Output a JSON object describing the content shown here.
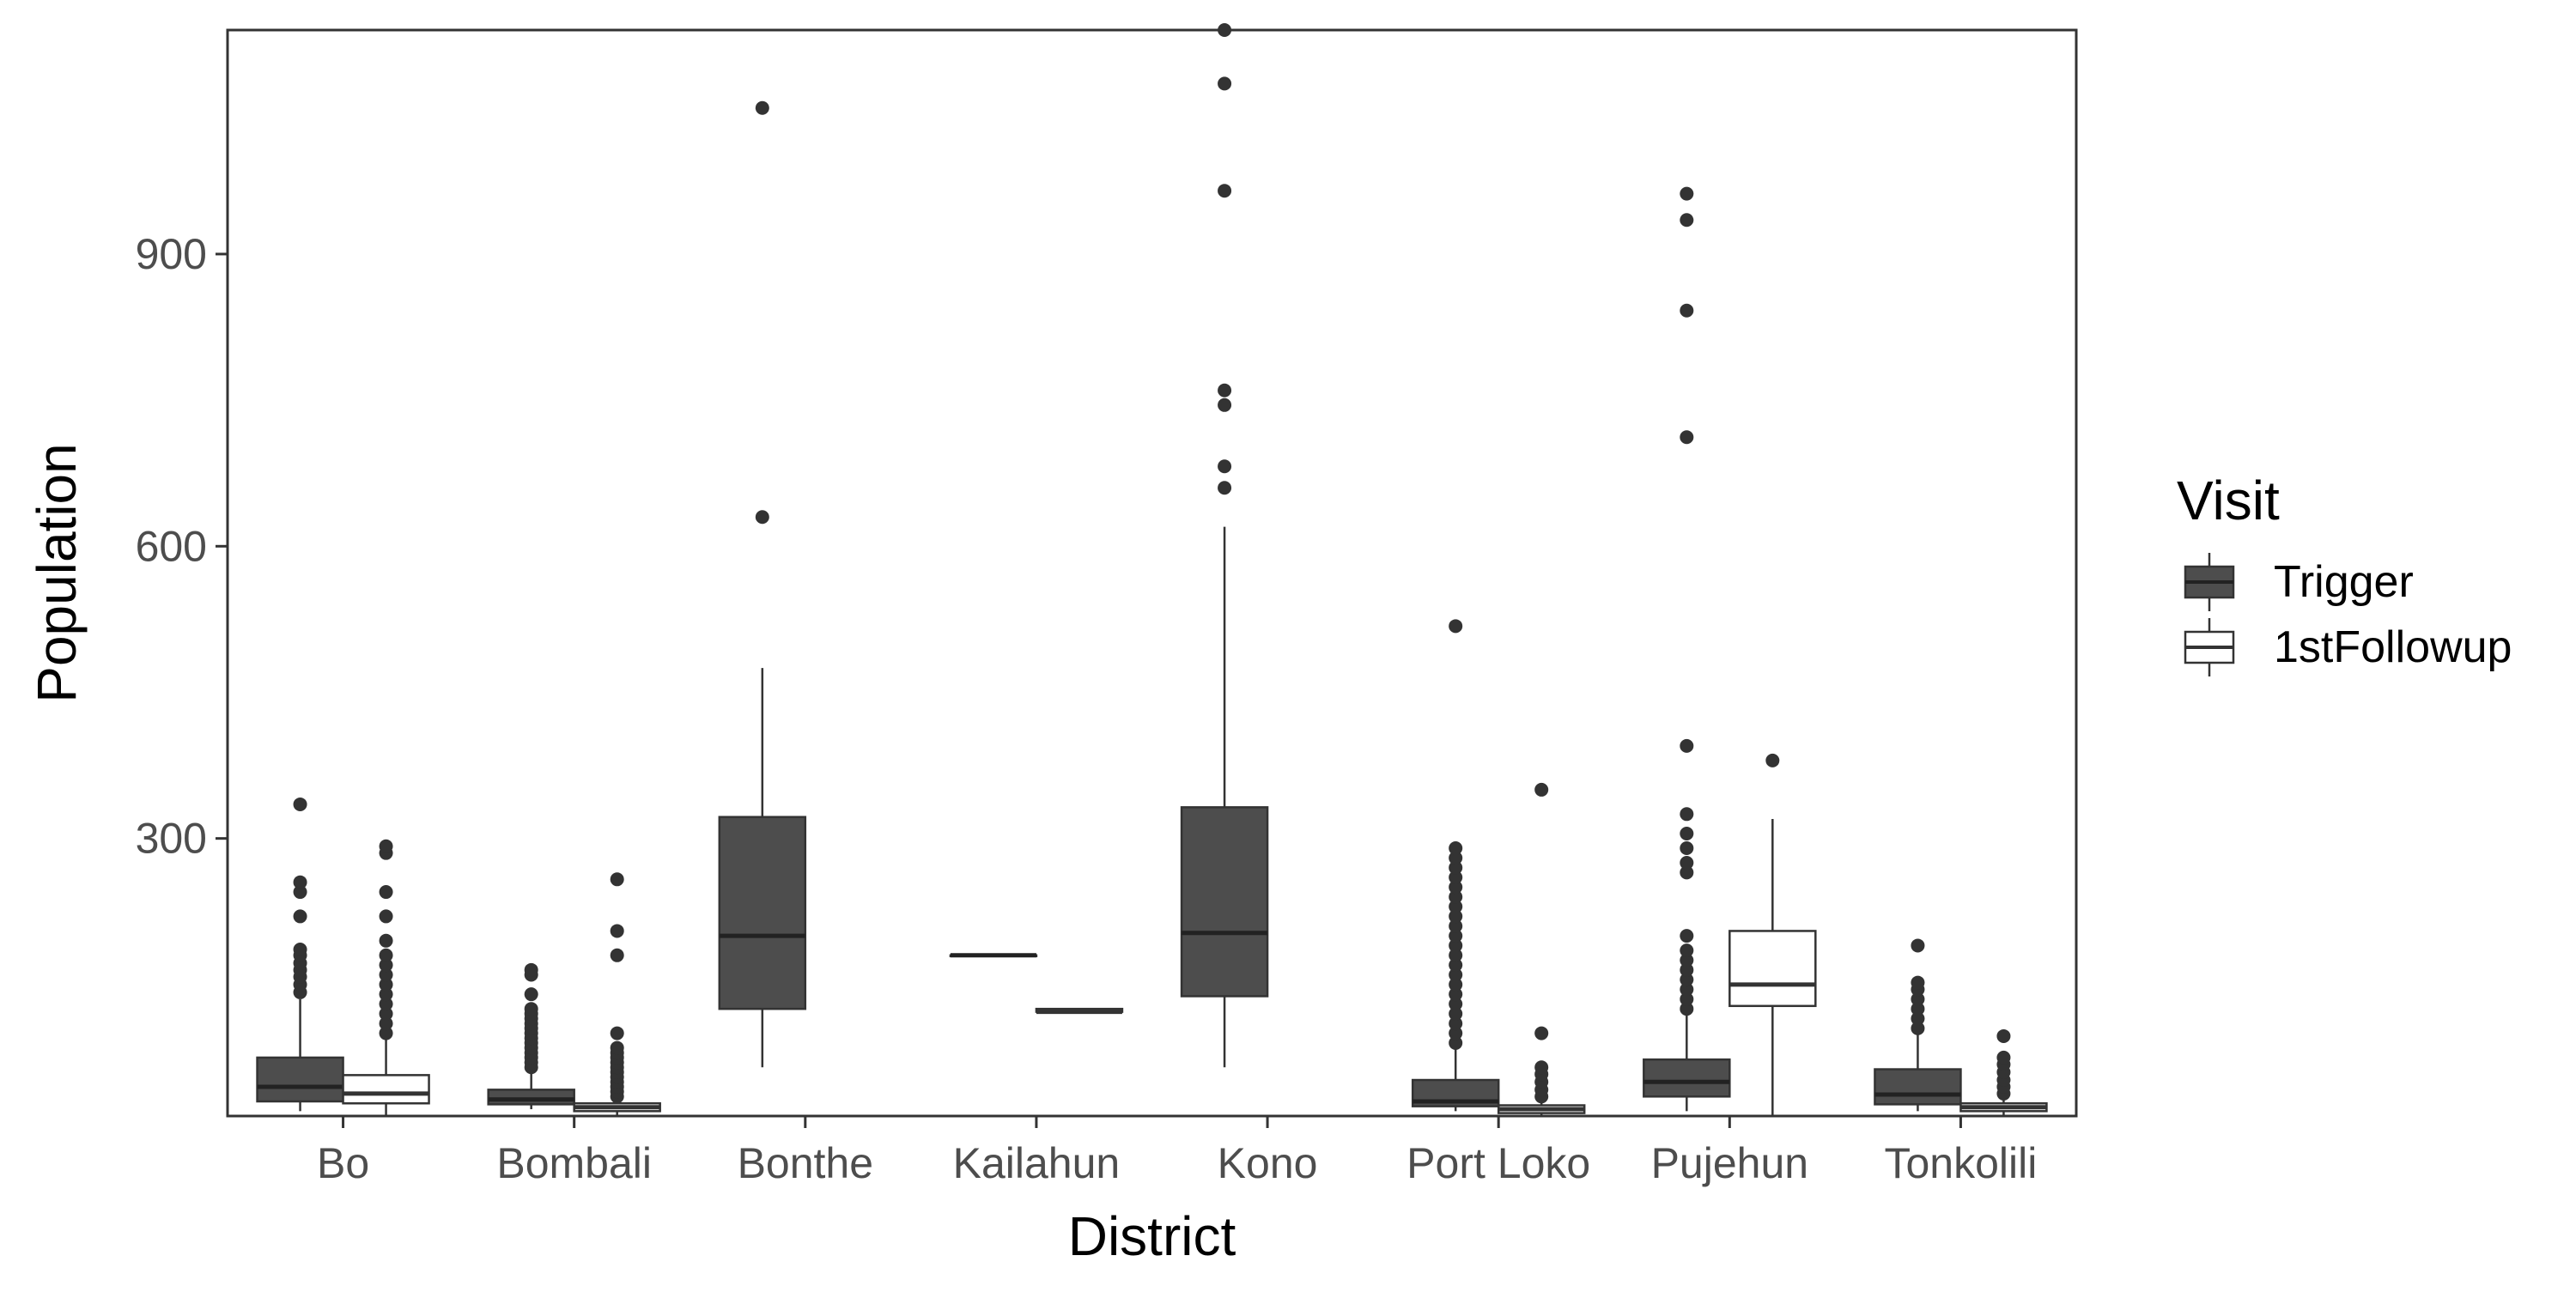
{
  "chart_data": {
    "type": "boxplot",
    "title": "",
    "xlabel": "District",
    "ylabel": "Population",
    "ylim": [
      15,
      1130
    ],
    "yticks": [
      300,
      600,
      900
    ],
    "grid": false,
    "legend": {
      "title": "Visit",
      "placement": "right"
    },
    "categories": [
      "Bo",
      "Bombali",
      "Bonthe",
      "Kailahun",
      "Kono",
      "Port Loko",
      "Pujehun",
      "Tonkolili"
    ],
    "colors": {
      "Trigger": "#4d4d4d",
      "1stFollowup": "#ffffff",
      "stroke": "#333333"
    },
    "series": [
      {
        "name": "Trigger",
        "boxes": [
          {
            "category": "Bo",
            "min": 20,
            "q1": 30,
            "median": 45,
            "q3": 75,
            "max": 135,
            "outliers": [
              142,
              150,
              158,
              165,
              172,
              180,
              186,
              220,
              245,
              255,
              335
            ]
          },
          {
            "category": "Bombali",
            "min": 22,
            "q1": 27,
            "median": 32,
            "q3": 42,
            "max": 60,
            "outliers": [
              65,
              70,
              75,
              80,
              85,
              90,
              95,
              100,
              105,
              110,
              115,
              120,
              125,
              140,
              160,
              165
            ]
          },
          {
            "category": "Bonthe",
            "min": 65,
            "q1": 125,
            "median": 200,
            "q3": 322,
            "max": 475,
            "outliers": [
              630,
              1050
            ]
          },
          {
            "category": "Kailahun",
            "min": 180,
            "q1": 180,
            "median": 180,
            "q3": 180,
            "max": 180,
            "outliers": []
          },
          {
            "category": "Kono",
            "min": 65,
            "q1": 138,
            "median": 203,
            "q3": 332,
            "max": 620,
            "outliers": [
              660,
              682,
              745,
              760,
              965,
              1075,
              1130
            ]
          },
          {
            "category": "Port Loko",
            "min": 20,
            "q1": 25,
            "median": 30,
            "q3": 52,
            "max": 85,
            "outliers": [
              90,
              100,
              110,
              120,
              130,
              140,
              150,
              160,
              170,
              180,
              190,
              200,
              210,
              220,
              230,
              240,
              250,
              260,
              270,
              280,
              290,
              518
            ]
          },
          {
            "category": "Pujehun",
            "min": 20,
            "q1": 35,
            "median": 50,
            "q3": 73,
            "max": 120,
            "outliers": [
              125,
              135,
              145,
              155,
              165,
              175,
              185,
              200,
              265,
              275,
              290,
              305,
              325,
              395,
              712,
              842,
              935,
              962
            ]
          },
          {
            "category": "Tonkolili",
            "min": 20,
            "q1": 27,
            "median": 37,
            "q3": 63,
            "max": 100,
            "outliers": [
              105,
              115,
              125,
              135,
              145,
              152,
              190
            ]
          }
        ]
      },
      {
        "name": "1stFollowup",
        "boxes": [
          {
            "category": "Bo",
            "min": 15,
            "q1": 28,
            "median": 38,
            "q3": 57,
            "max": 95,
            "outliers": [
              100,
              110,
              120,
              130,
              140,
              150,
              160,
              170,
              180,
              195,
              220,
              245,
              285,
              292
            ]
          },
          {
            "category": "Bombali",
            "min": 15,
            "q1": 20,
            "median": 24,
            "q3": 28,
            "max": 32,
            "outliers": [
              35,
              40,
              45,
              50,
              55,
              60,
              65,
              70,
              75,
              80,
              85,
              100,
              180,
              205,
              258
            ]
          },
          {
            "category": "Kailahun",
            "min": 122,
            "q1": 122,
            "median": 122,
            "q3": 125,
            "max": 125,
            "outliers": []
          },
          {
            "category": "Port Loko",
            "min": 15,
            "q1": 18,
            "median": 22,
            "q3": 26,
            "max": 30,
            "outliers": [
              35,
              42,
              50,
              58,
              65,
              100,
              350
            ]
          },
          {
            "category": "Pujehun",
            "min": 15,
            "q1": 128,
            "median": 150,
            "q3": 205,
            "max": 320,
            "outliers": [
              380
            ]
          },
          {
            "category": "Tonkolili",
            "min": 15,
            "q1": 20,
            "median": 24,
            "q3": 28,
            "max": 32,
            "outliers": [
              38,
              45,
              52,
              60,
              68,
              75,
              97
            ]
          }
        ]
      }
    ]
  }
}
